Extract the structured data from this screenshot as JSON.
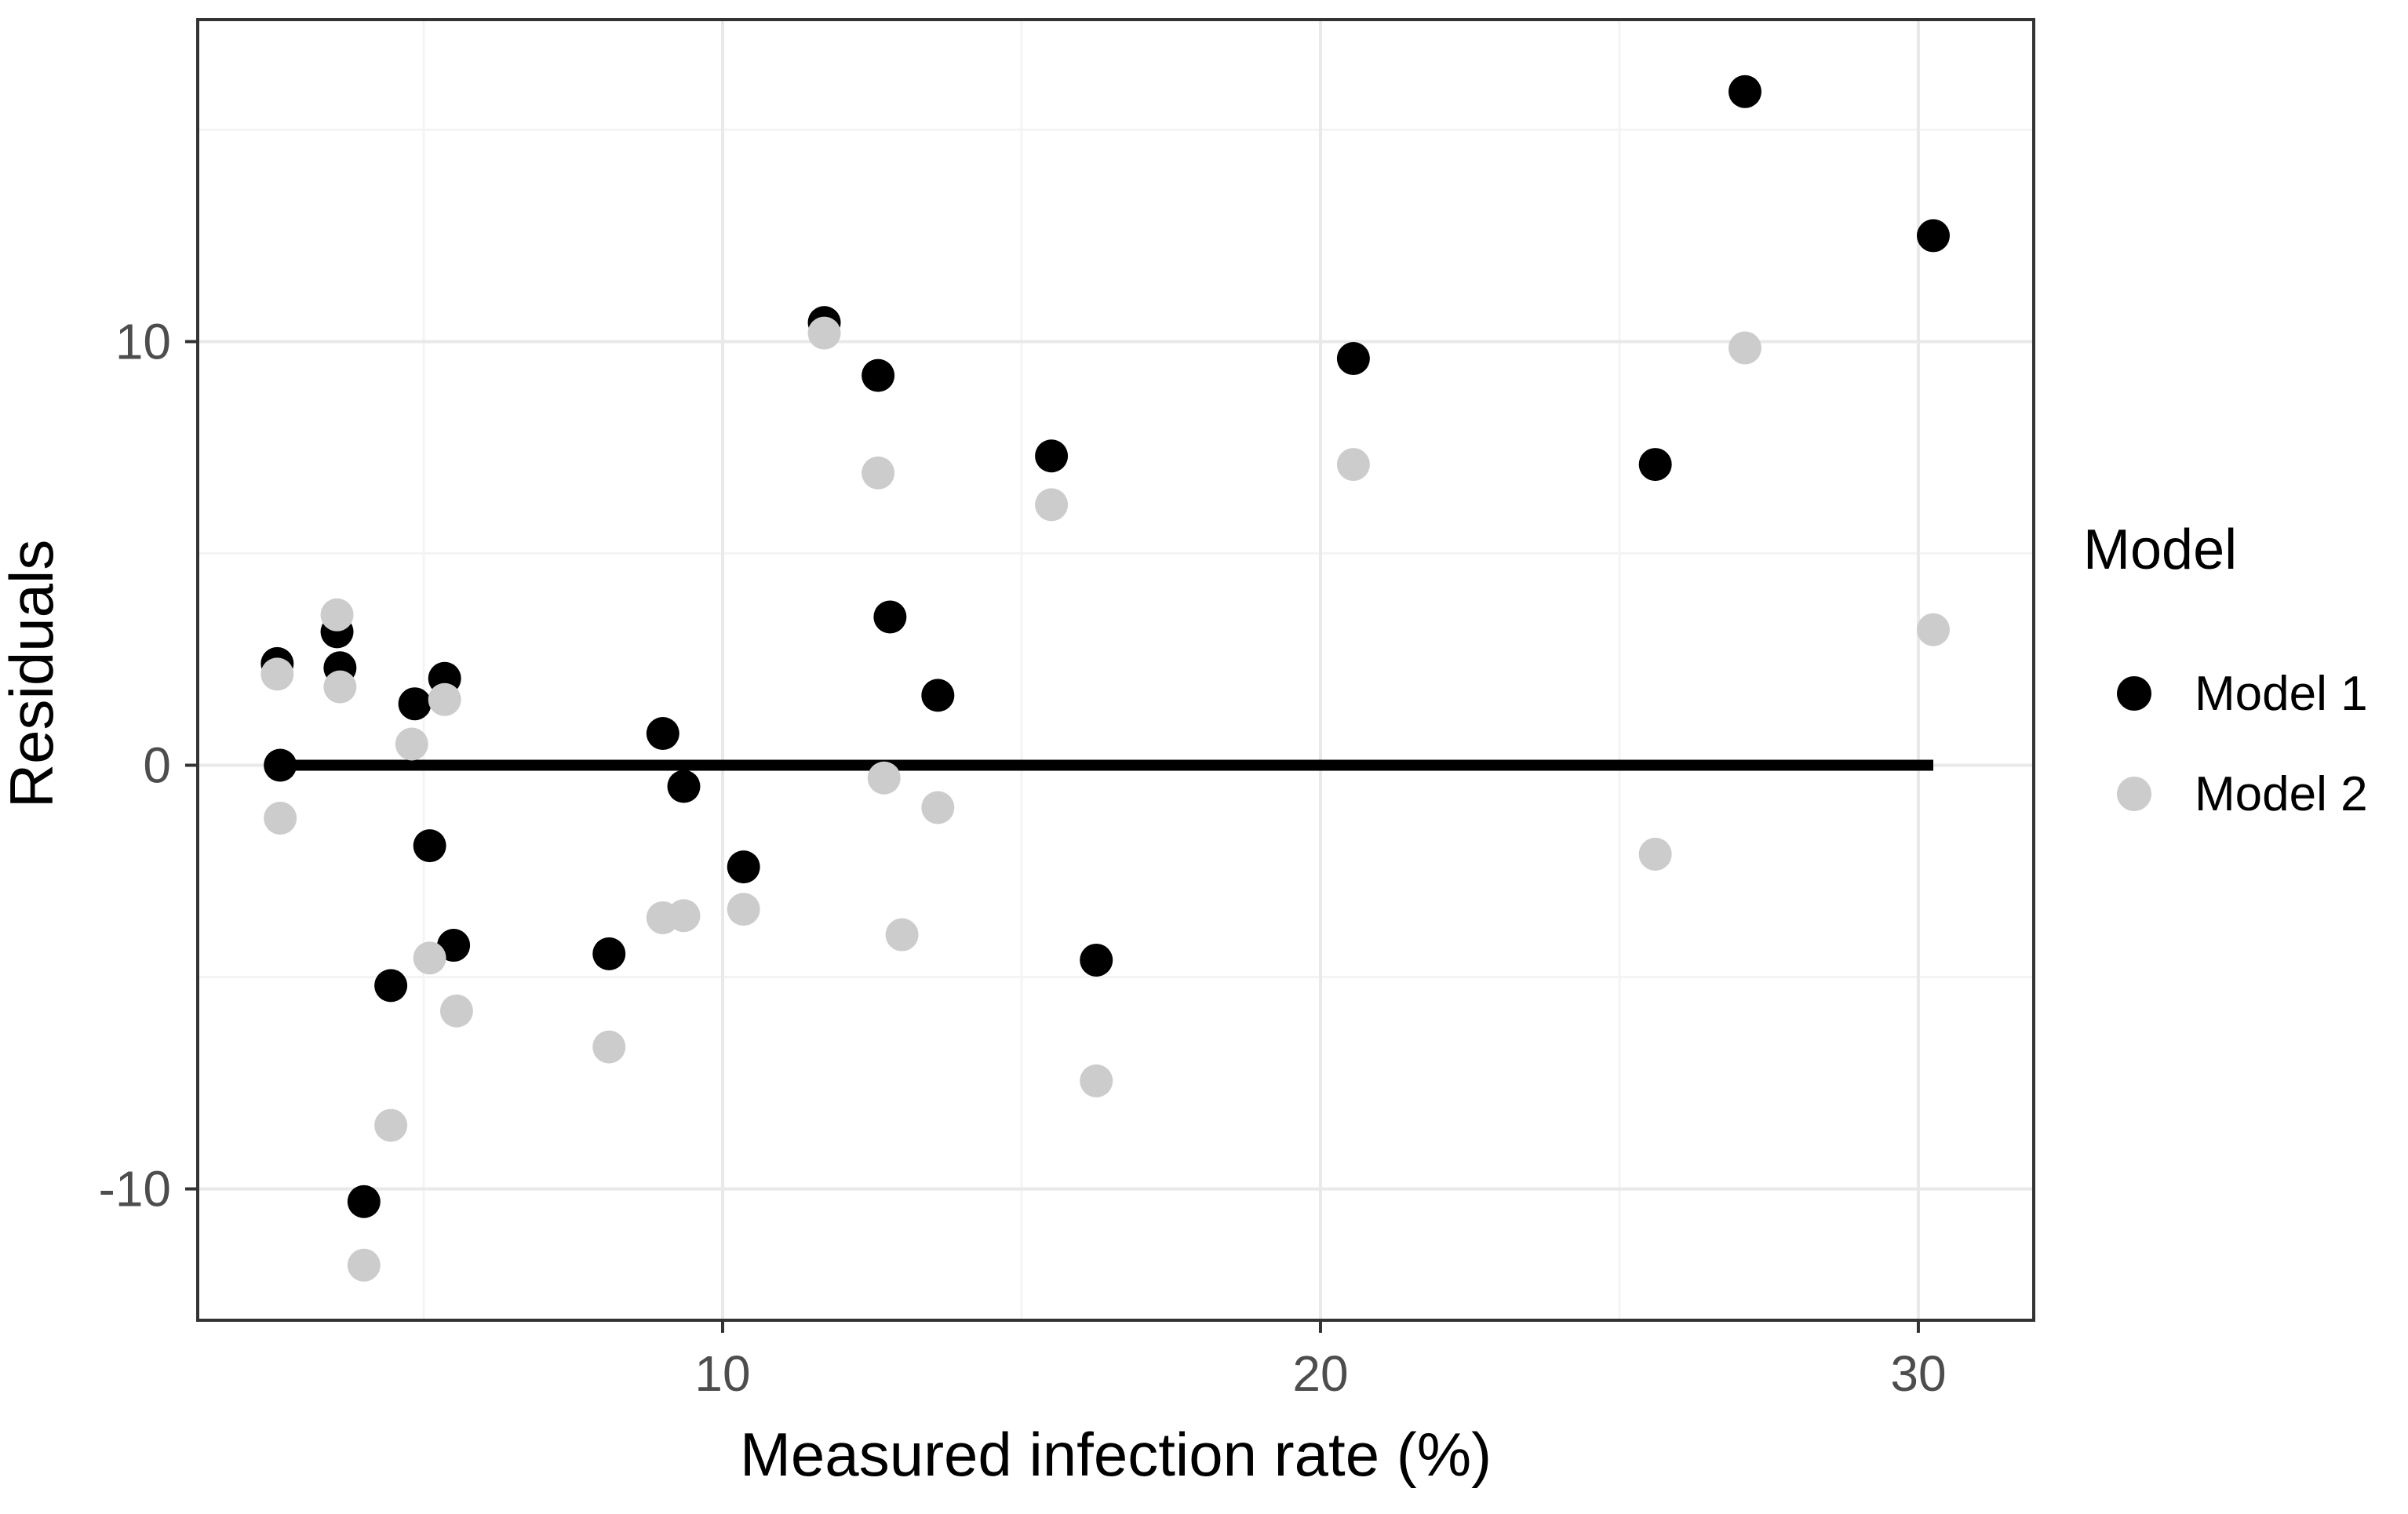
{
  "chart_data": {
    "type": "scatter",
    "title": "",
    "xlabel": "Measured infection rate (%)",
    "ylabel": "Residuals",
    "x_domain": [
      1.22,
      31.93
    ],
    "y_domain": [
      -13.1,
      17.6
    ],
    "x_ticks": [
      10,
      20,
      30
    ],
    "y_ticks": [
      -10,
      0,
      10
    ],
    "x_minor_ticks": [
      5,
      15,
      25
    ],
    "y_minor_ticks": [
      -5,
      5,
      15
    ],
    "grid": "major+minor",
    "legend_position": "right",
    "zero_line": {
      "y": 0,
      "x_start": 2.6,
      "x_end": 30.25,
      "color": "#000000",
      "width": 14
    },
    "series": [
      {
        "name": "Model 1",
        "color": "#000000",
        "points": [
          [
            2.55,
            2.4
          ],
          [
            2.6,
            0.0
          ],
          [
            3.55,
            3.15
          ],
          [
            3.6,
            2.3
          ],
          [
            4.0,
            -10.3
          ],
          [
            4.45,
            -5.2
          ],
          [
            4.85,
            1.45
          ],
          [
            5.1,
            -1.9
          ],
          [
            5.35,
            2.05
          ],
          [
            5.5,
            -4.25
          ],
          [
            8.1,
            -4.45
          ],
          [
            9.0,
            0.75
          ],
          [
            9.35,
            -0.5
          ],
          [
            10.35,
            -2.4
          ],
          [
            11.7,
            10.45
          ],
          [
            12.6,
            9.2
          ],
          [
            12.8,
            3.5
          ],
          [
            13.6,
            1.65
          ],
          [
            15.5,
            7.3
          ],
          [
            16.25,
            -4.6
          ],
          [
            20.55,
            9.6
          ],
          [
            25.6,
            7.1
          ],
          [
            27.1,
            15.9
          ],
          [
            30.25,
            12.5
          ]
        ]
      },
      {
        "name": "Model 2",
        "color": "#cccccc",
        "points": [
          [
            2.55,
            2.15
          ],
          [
            2.6,
            -1.25
          ],
          [
            3.55,
            3.55
          ],
          [
            3.6,
            1.85
          ],
          [
            4.0,
            -11.8
          ],
          [
            4.45,
            -8.5
          ],
          [
            4.8,
            0.5
          ],
          [
            5.1,
            -4.55
          ],
          [
            5.35,
            1.55
          ],
          [
            5.55,
            -5.8
          ],
          [
            8.1,
            -6.65
          ],
          [
            9.0,
            -3.6
          ],
          [
            9.35,
            -3.55
          ],
          [
            10.35,
            -3.4
          ],
          [
            11.7,
            10.2
          ],
          [
            12.6,
            6.9
          ],
          [
            12.7,
            -0.3
          ],
          [
            13.0,
            -4.0
          ],
          [
            13.6,
            -1.0
          ],
          [
            15.5,
            6.15
          ],
          [
            16.25,
            -7.45
          ],
          [
            20.55,
            7.1
          ],
          [
            25.6,
            -2.1
          ],
          [
            27.1,
            9.85
          ],
          [
            30.25,
            3.2
          ]
        ]
      }
    ]
  },
  "legend": {
    "title": "Model",
    "items": [
      {
        "label": "Model 1",
        "color": "#000000"
      },
      {
        "label": "Model 2",
        "color": "#cccccc"
      }
    ]
  },
  "style": {
    "panel_border_color": "#333333",
    "grid_major_color": "#e9e9e9",
    "grid_minor_color": "#f4f4f4",
    "tick_color": "#333333",
    "tick_label_color": "#4d4d4d",
    "point_radius": 21
  }
}
